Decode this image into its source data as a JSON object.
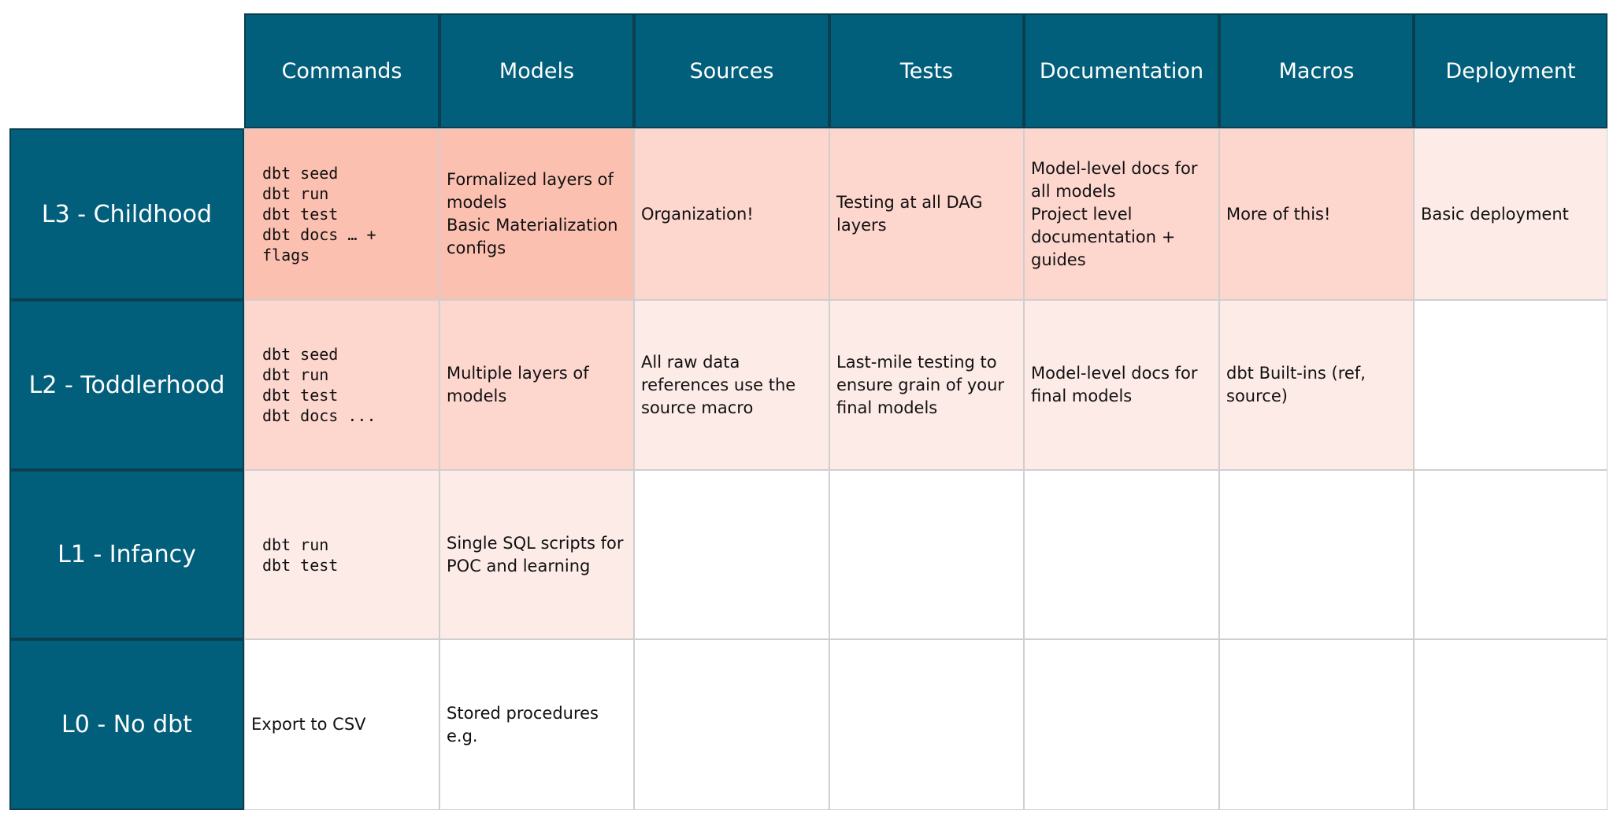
{
  "table": {
    "columns": [
      "Commands",
      "Models",
      "Sources",
      "Tests",
      "Documentation",
      "Macros",
      "Deployment"
    ],
    "rows": [
      {
        "label": "L3 - Childhood",
        "cells": [
          {
            "text": "dbt seed\ndbt run\ndbt test\ndbt docs … +\nflags",
            "code": true,
            "fill": "#fcc0b1"
          },
          {
            "text": "Formalized layers of models\nBasic Materialization configs",
            "fill": "#fcc0b1"
          },
          {
            "text": "Organization!",
            "fill": "#fdd6ce"
          },
          {
            "text": "Testing at all DAG layers",
            "fill": "#fdd6ce"
          },
          {
            "text": "Model-level docs for all models\nProject level documentation + guides",
            "fill": "#fdd6ce"
          },
          {
            "text": "More of this!",
            "fill": "#fdd6ce"
          },
          {
            "text": "Basic deployment",
            "fill": "#fdebe7"
          }
        ]
      },
      {
        "label": "L2 - Toddlerhood",
        "cells": [
          {
            "text": "dbt seed\ndbt run\ndbt test\ndbt docs ...",
            "code": true,
            "fill": "#fdd6ce"
          },
          {
            "text": "Multiple layers of models",
            "fill": "#fdd6ce"
          },
          {
            "text": "All raw data references use the source macro",
            "fill": "#fdebe7"
          },
          {
            "text": "Last-mile testing to ensure grain of your final models",
            "fill": "#fdebe7"
          },
          {
            "text": "Model-level docs for final models",
            "fill": "#fdebe7"
          },
          {
            "text": "dbt Built-ins (ref, source)",
            "fill": "#fdebe7"
          },
          null
        ]
      },
      {
        "label": "L1 - Infancy",
        "cells": [
          {
            "text": "dbt run\ndbt test",
            "code": true,
            "fill": "#fdebe7"
          },
          {
            "text": "Single SQL scripts for POC and learning",
            "fill": "#fdebe7"
          },
          null,
          null,
          null,
          null,
          null
        ]
      },
      {
        "label": "L0 - No dbt",
        "cells": [
          {
            "text": "Export to CSV"
          },
          {
            "text": "Stored procedures e.g."
          },
          null,
          null,
          null,
          null,
          null
        ]
      }
    ]
  }
}
